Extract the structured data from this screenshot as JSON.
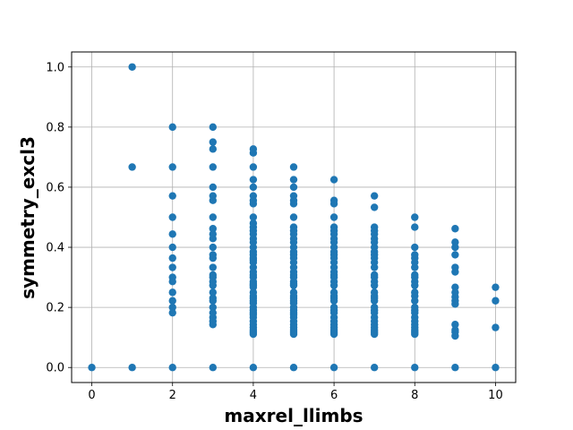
{
  "chart_data": {
    "type": "scatter",
    "title": "",
    "xlabel": "maxrel_llimbs",
    "ylabel": "symmetry_excl3",
    "xlim": [
      -0.5,
      10.5
    ],
    "ylim": [
      -0.05,
      1.05
    ],
    "xticks": [
      0,
      2,
      4,
      6,
      8,
      10
    ],
    "yticks": [
      0.0,
      0.2,
      0.4,
      0.6,
      0.8,
      1.0
    ],
    "xtick_labels": [
      "0",
      "2",
      "4",
      "6",
      "8",
      "10"
    ],
    "ytick_labels": [
      "0.0",
      "0.2",
      "0.4",
      "0.6",
      "0.8",
      "1.0"
    ],
    "grid": true,
    "marker_color": "#1f77b4",
    "series": [
      {
        "points": [
          [
            0,
            0.0
          ],
          [
            1,
            1.0
          ],
          [
            1,
            0.667
          ],
          [
            1,
            0.0
          ],
          [
            2,
            0.8
          ],
          [
            2,
            0.667
          ],
          [
            2,
            0.571
          ],
          [
            2,
            0.5
          ],
          [
            2,
            0.444
          ],
          [
            2,
            0.4
          ],
          [
            2,
            0.364
          ],
          [
            2,
            0.333
          ],
          [
            2,
            0.3
          ],
          [
            2,
            0.286
          ],
          [
            2,
            0.25
          ],
          [
            2,
            0.222
          ],
          [
            2,
            0.2
          ],
          [
            2,
            0.182
          ],
          [
            2,
            0.0
          ],
          [
            3,
            0.8
          ],
          [
            3,
            0.75
          ],
          [
            3,
            0.727
          ],
          [
            3,
            0.667
          ],
          [
            3,
            0.6
          ],
          [
            3,
            0.571
          ],
          [
            3,
            0.556
          ],
          [
            3,
            0.5
          ],
          [
            3,
            0.462
          ],
          [
            3,
            0.444
          ],
          [
            3,
            0.429
          ],
          [
            3,
            0.4
          ],
          [
            3,
            0.375
          ],
          [
            3,
            0.364
          ],
          [
            3,
            0.333
          ],
          [
            3,
            0.308
          ],
          [
            3,
            0.3
          ],
          [
            3,
            0.286
          ],
          [
            3,
            0.273
          ],
          [
            3,
            0.25
          ],
          [
            3,
            0.231
          ],
          [
            3,
            0.222
          ],
          [
            3,
            0.2
          ],
          [
            3,
            0.182
          ],
          [
            3,
            0.167
          ],
          [
            3,
            0.154
          ],
          [
            3,
            0.143
          ],
          [
            3,
            0.0
          ],
          [
            4,
            0.727
          ],
          [
            4,
            0.714
          ],
          [
            4,
            0.667
          ],
          [
            4,
            0.625
          ],
          [
            4,
            0.6
          ],
          [
            4,
            0.571
          ],
          [
            4,
            0.556
          ],
          [
            4,
            0.545
          ],
          [
            4,
            0.5
          ],
          [
            4,
            0.48
          ],
          [
            4,
            0.467
          ],
          [
            4,
            0.455
          ],
          [
            4,
            0.444
          ],
          [
            4,
            0.429
          ],
          [
            4,
            0.417
          ],
          [
            4,
            0.4
          ],
          [
            4,
            0.385
          ],
          [
            4,
            0.375
          ],
          [
            4,
            0.364
          ],
          [
            4,
            0.357
          ],
          [
            4,
            0.35
          ],
          [
            4,
            0.333
          ],
          [
            4,
            0.318
          ],
          [
            4,
            0.308
          ],
          [
            4,
            0.3
          ],
          [
            4,
            0.286
          ],
          [
            4,
            0.278
          ],
          [
            4,
            0.273
          ],
          [
            4,
            0.267
          ],
          [
            4,
            0.25
          ],
          [
            4,
            0.238
          ],
          [
            4,
            0.231
          ],
          [
            4,
            0.222
          ],
          [
            4,
            0.214
          ],
          [
            4,
            0.2
          ],
          [
            4,
            0.19
          ],
          [
            4,
            0.182
          ],
          [
            4,
            0.176
          ],
          [
            4,
            0.167
          ],
          [
            4,
            0.154
          ],
          [
            4,
            0.143
          ],
          [
            4,
            0.133
          ],
          [
            4,
            0.125
          ],
          [
            4,
            0.118
          ],
          [
            4,
            0.111
          ],
          [
            4,
            0.0
          ],
          [
            5,
            0.667
          ],
          [
            5,
            0.625
          ],
          [
            5,
            0.6
          ],
          [
            5,
            0.571
          ],
          [
            5,
            0.556
          ],
          [
            5,
            0.545
          ],
          [
            5,
            0.5
          ],
          [
            5,
            0.467
          ],
          [
            5,
            0.455
          ],
          [
            5,
            0.444
          ],
          [
            5,
            0.429
          ],
          [
            5,
            0.417
          ],
          [
            5,
            0.4
          ],
          [
            5,
            0.385
          ],
          [
            5,
            0.375
          ],
          [
            5,
            0.364
          ],
          [
            5,
            0.35
          ],
          [
            5,
            0.333
          ],
          [
            5,
            0.318
          ],
          [
            5,
            0.308
          ],
          [
            5,
            0.3
          ],
          [
            5,
            0.286
          ],
          [
            5,
            0.278
          ],
          [
            5,
            0.273
          ],
          [
            5,
            0.25
          ],
          [
            5,
            0.238
          ],
          [
            5,
            0.231
          ],
          [
            5,
            0.222
          ],
          [
            5,
            0.214
          ],
          [
            5,
            0.2
          ],
          [
            5,
            0.19
          ],
          [
            5,
            0.182
          ],
          [
            5,
            0.176
          ],
          [
            5,
            0.167
          ],
          [
            5,
            0.154
          ],
          [
            5,
            0.143
          ],
          [
            5,
            0.133
          ],
          [
            5,
            0.125
          ],
          [
            5,
            0.118
          ],
          [
            5,
            0.111
          ],
          [
            5,
            0.0
          ],
          [
            6,
            0.625
          ],
          [
            6,
            0.556
          ],
          [
            6,
            0.545
          ],
          [
            6,
            0.5
          ],
          [
            6,
            0.467
          ],
          [
            6,
            0.455
          ],
          [
            6,
            0.444
          ],
          [
            6,
            0.429
          ],
          [
            6,
            0.417
          ],
          [
            6,
            0.4
          ],
          [
            6,
            0.385
          ],
          [
            6,
            0.375
          ],
          [
            6,
            0.364
          ],
          [
            6,
            0.35
          ],
          [
            6,
            0.333
          ],
          [
            6,
            0.318
          ],
          [
            6,
            0.308
          ],
          [
            6,
            0.3
          ],
          [
            6,
            0.286
          ],
          [
            6,
            0.273
          ],
          [
            6,
            0.25
          ],
          [
            6,
            0.238
          ],
          [
            6,
            0.231
          ],
          [
            6,
            0.222
          ],
          [
            6,
            0.2
          ],
          [
            6,
            0.19
          ],
          [
            6,
            0.182
          ],
          [
            6,
            0.167
          ],
          [
            6,
            0.154
          ],
          [
            6,
            0.143
          ],
          [
            6,
            0.133
          ],
          [
            6,
            0.125
          ],
          [
            6,
            0.118
          ],
          [
            6,
            0.111
          ],
          [
            6,
            0.0
          ],
          [
            7,
            0.571
          ],
          [
            7,
            0.533
          ],
          [
            7,
            0.467
          ],
          [
            7,
            0.455
          ],
          [
            7,
            0.444
          ],
          [
            7,
            0.429
          ],
          [
            7,
            0.417
          ],
          [
            7,
            0.4
          ],
          [
            7,
            0.385
          ],
          [
            7,
            0.375
          ],
          [
            7,
            0.364
          ],
          [
            7,
            0.35
          ],
          [
            7,
            0.333
          ],
          [
            7,
            0.308
          ],
          [
            7,
            0.3
          ],
          [
            7,
            0.286
          ],
          [
            7,
            0.273
          ],
          [
            7,
            0.25
          ],
          [
            7,
            0.238
          ],
          [
            7,
            0.231
          ],
          [
            7,
            0.222
          ],
          [
            7,
            0.2
          ],
          [
            7,
            0.19
          ],
          [
            7,
            0.182
          ],
          [
            7,
            0.167
          ],
          [
            7,
            0.154
          ],
          [
            7,
            0.143
          ],
          [
            7,
            0.133
          ],
          [
            7,
            0.125
          ],
          [
            7,
            0.118
          ],
          [
            7,
            0.111
          ],
          [
            7,
            0.0
          ],
          [
            8,
            0.5
          ],
          [
            8,
            0.467
          ],
          [
            8,
            0.4
          ],
          [
            8,
            0.375
          ],
          [
            8,
            0.364
          ],
          [
            8,
            0.35
          ],
          [
            8,
            0.333
          ],
          [
            8,
            0.308
          ],
          [
            8,
            0.3
          ],
          [
            8,
            0.286
          ],
          [
            8,
            0.273
          ],
          [
            8,
            0.25
          ],
          [
            8,
            0.238
          ],
          [
            8,
            0.222
          ],
          [
            8,
            0.2
          ],
          [
            8,
            0.19
          ],
          [
            8,
            0.182
          ],
          [
            8,
            0.167
          ],
          [
            8,
            0.154
          ],
          [
            8,
            0.143
          ],
          [
            8,
            0.133
          ],
          [
            8,
            0.125
          ],
          [
            8,
            0.118
          ],
          [
            8,
            0.111
          ],
          [
            8,
            0.0
          ],
          [
            9,
            0.462
          ],
          [
            9,
            0.417
          ],
          [
            9,
            0.4
          ],
          [
            9,
            0.375
          ],
          [
            9,
            0.333
          ],
          [
            9,
            0.318
          ],
          [
            9,
            0.267
          ],
          [
            9,
            0.25
          ],
          [
            9,
            0.235
          ],
          [
            9,
            0.222
          ],
          [
            9,
            0.211
          ],
          [
            9,
            0.143
          ],
          [
            9,
            0.125
          ],
          [
            9,
            0.118
          ],
          [
            9,
            0.105
          ],
          [
            9,
            0.0
          ],
          [
            10,
            0.267
          ],
          [
            10,
            0.222
          ],
          [
            10,
            0.133
          ],
          [
            10,
            0.0
          ]
        ]
      }
    ]
  }
}
